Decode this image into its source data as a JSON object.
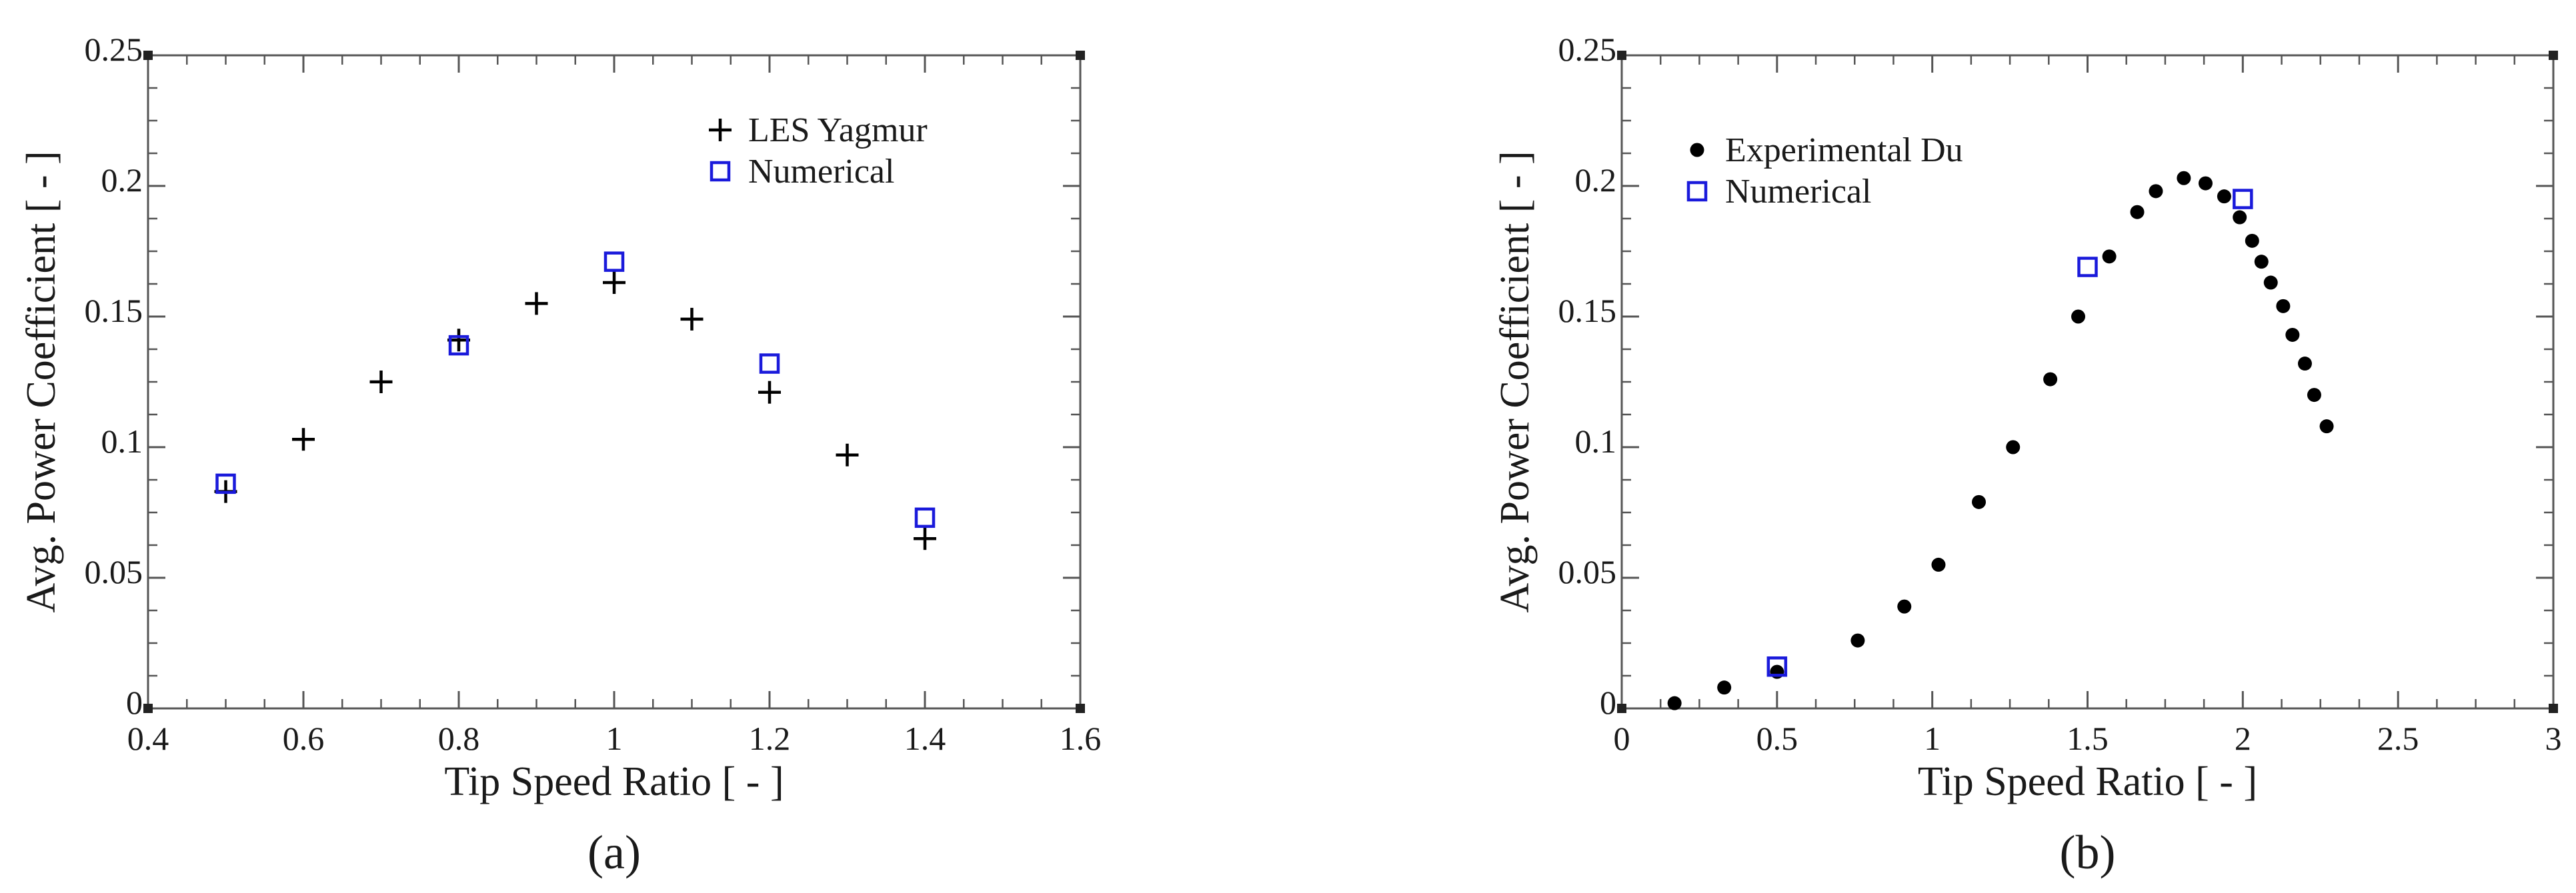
{
  "chart_data": [
    {
      "type": "scatter",
      "panel_label": "(a)",
      "xlabel": "Tip Speed Ratio [ - ]",
      "ylabel": "Avg. Power Coefficient [ - ]",
      "xlim": [
        0.4,
        1.6
      ],
      "ylim": [
        0,
        0.25
      ],
      "x_ticks": [
        "0.4",
        "0.6",
        "0.8",
        "1",
        "1.2",
        "1.4",
        "1.6"
      ],
      "y_ticks": [
        "0",
        "0.05",
        "0.1",
        "0.15",
        "0.2",
        "0.25"
      ],
      "legend_position": "top-right",
      "grid": false,
      "series": [
        {
          "name": "LES Yagmur",
          "marker": "plus",
          "color": "#000000",
          "points": [
            {
              "x": 0.5,
              "y": 0.083
            },
            {
              "x": 0.6,
              "y": 0.103
            },
            {
              "x": 0.7,
              "y": 0.125
            },
            {
              "x": 0.8,
              "y": 0.141
            },
            {
              "x": 0.9,
              "y": 0.155
            },
            {
              "x": 1.0,
              "y": 0.163
            },
            {
              "x": 1.1,
              "y": 0.149
            },
            {
              "x": 1.2,
              "y": 0.121
            },
            {
              "x": 1.3,
              "y": 0.097
            },
            {
              "x": 1.4,
              "y": 0.065
            }
          ]
        },
        {
          "name": "Numerical",
          "marker": "square",
          "color": "#1a1adb",
          "points": [
            {
              "x": 0.5,
              "y": 0.086
            },
            {
              "x": 0.8,
              "y": 0.139
            },
            {
              "x": 1.0,
              "y": 0.171
            },
            {
              "x": 1.2,
              "y": 0.132
            },
            {
              "x": 1.4,
              "y": 0.073
            }
          ]
        }
      ]
    },
    {
      "type": "scatter",
      "panel_label": "(b)",
      "xlabel": "Tip Speed Ratio [ - ]",
      "ylabel": "Avg. Power Coefficient [ - ]",
      "xlim": [
        0,
        3
      ],
      "ylim": [
        0,
        0.25
      ],
      "x_ticks": [
        "0",
        "0.5",
        "1",
        "1.5",
        "2",
        "2.5",
        "3"
      ],
      "y_ticks": [
        "0",
        "0.05",
        "0.1",
        "0.15",
        "0.2",
        "0.25"
      ],
      "legend_position": "top-left",
      "grid": false,
      "series": [
        {
          "name": "Experimental Du",
          "marker": "circle",
          "color": "#000000",
          "points": [
            {
              "x": 0.17,
              "y": 0.002
            },
            {
              "x": 0.33,
              "y": 0.008
            },
            {
              "x": 0.5,
              "y": 0.014
            },
            {
              "x": 0.76,
              "y": 0.026
            },
            {
              "x": 0.91,
              "y": 0.039
            },
            {
              "x": 1.02,
              "y": 0.055
            },
            {
              "x": 1.15,
              "y": 0.079
            },
            {
              "x": 1.26,
              "y": 0.1
            },
            {
              "x": 1.38,
              "y": 0.126
            },
            {
              "x": 1.47,
              "y": 0.15
            },
            {
              "x": 1.57,
              "y": 0.173
            },
            {
              "x": 1.66,
              "y": 0.19
            },
            {
              "x": 1.72,
              "y": 0.198
            },
            {
              "x": 1.81,
              "y": 0.203
            },
            {
              "x": 1.88,
              "y": 0.201
            },
            {
              "x": 1.94,
              "y": 0.196
            },
            {
              "x": 1.99,
              "y": 0.188
            },
            {
              "x": 2.03,
              "y": 0.179
            },
            {
              "x": 2.06,
              "y": 0.171
            },
            {
              "x": 2.09,
              "y": 0.163
            },
            {
              "x": 2.13,
              "y": 0.154
            },
            {
              "x": 2.16,
              "y": 0.143
            },
            {
              "x": 2.2,
              "y": 0.132
            },
            {
              "x": 2.23,
              "y": 0.12
            },
            {
              "x": 2.27,
              "y": 0.108
            }
          ]
        },
        {
          "name": "Numerical",
          "marker": "square",
          "color": "#1a1adb",
          "points": [
            {
              "x": 0.5,
              "y": 0.016
            },
            {
              "x": 1.5,
              "y": 0.169
            },
            {
              "x": 2.0,
              "y": 0.195
            }
          ]
        }
      ]
    }
  ]
}
